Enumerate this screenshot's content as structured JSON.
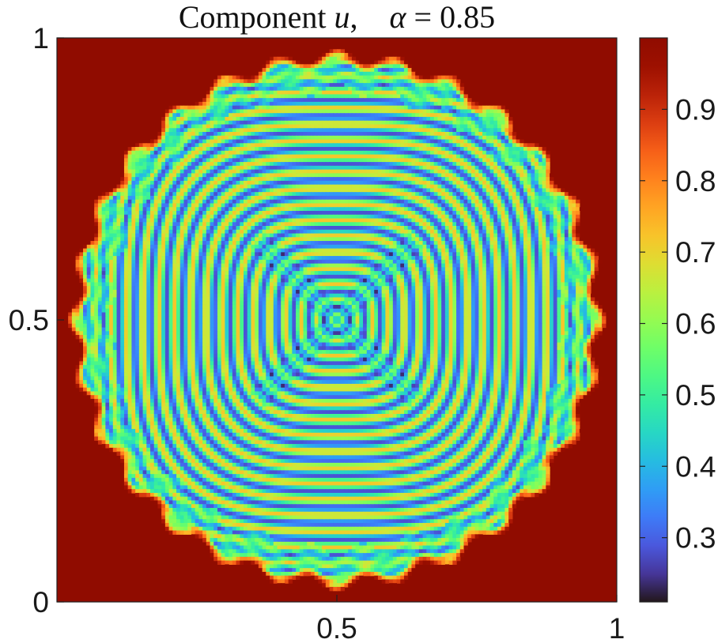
{
  "chart_data": {
    "type": "heatmap",
    "title": {
      "prefix": "Component ",
      "variable": "u",
      "separator": ",    ",
      "alpha_symbol": "α",
      "equals": " = ",
      "alpha_value": "0.85"
    },
    "xlim": [
      0,
      1
    ],
    "ylim": [
      0,
      1
    ],
    "x_ticks": [
      {
        "value": 0.5,
        "label": "0.5"
      },
      {
        "value": 1,
        "label": "1"
      }
    ],
    "y_ticks": [
      {
        "value": 0,
        "label": "0"
      },
      {
        "value": 0.5,
        "label": "0.5"
      },
      {
        "value": 1,
        "label": "1"
      }
    ],
    "colorbar": {
      "range": [
        0.21,
        1.0
      ],
      "colormap": "turbo",
      "ticks": [
        {
          "value": 0.3,
          "label": "0.3"
        },
        {
          "value": 0.4,
          "label": "0.4"
        },
        {
          "value": 0.5,
          "label": "0.5"
        },
        {
          "value": 0.6,
          "label": "0.6"
        },
        {
          "value": 0.7,
          "label": "0.7"
        },
        {
          "value": 0.8,
          "label": "0.8"
        },
        {
          "value": 0.9,
          "label": "0.9"
        }
      ]
    },
    "background_value": 1.0,
    "pattern": "concentric ring/stripe pattern inside a circular disk centered at (0.5, 0.5) with radius ≈ 0.45; four-fold diagonal cross at the centre; values oscillate ≈ 0.25–0.75 inside the disk, ≈ 1.0 outside"
  }
}
